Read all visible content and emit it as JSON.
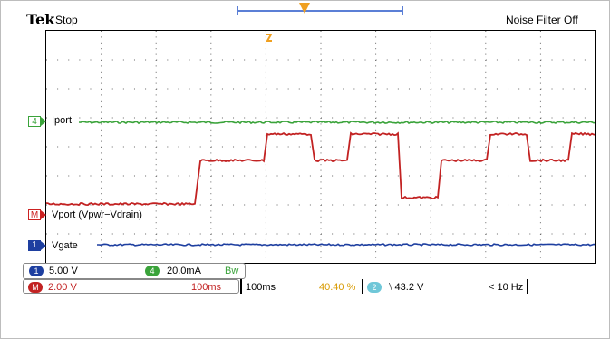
{
  "header": {
    "brand": "Tek",
    "acq_state": "Stop",
    "noise_filter": "Noise Filter Off"
  },
  "channels": [
    {
      "id": "4",
      "label": "Iport",
      "color": "#3aa33a"
    },
    {
      "id": "M",
      "label": "Vport (Vpwr−Vdrain)",
      "color": "#c22222"
    },
    {
      "id": "1",
      "label": "Vgate",
      "color": "#1e3fa0"
    }
  ],
  "status": {
    "ch1_badge": "1",
    "ch1_scale": "5.00 V",
    "ch4_badge": "4",
    "ch4_scale": "20.0mA",
    "bw_mark": "Bw",
    "math_badge": "M",
    "math_scale": "2.00 V",
    "math_time": "100ms",
    "timebase": "100ms",
    "trigger_pos": "40.40 %",
    "trig_ch_badge": "2",
    "trig_level": "⧵ 43.2 V",
    "trig_freq": "< 10 Hz"
  },
  "colors": {
    "ch1": "#1e3fa0",
    "ch4": "#3aa33a",
    "math": "#c22222",
    "trigger_marker": "#f0a020",
    "trig_ch": "#6fc7d8"
  }
}
